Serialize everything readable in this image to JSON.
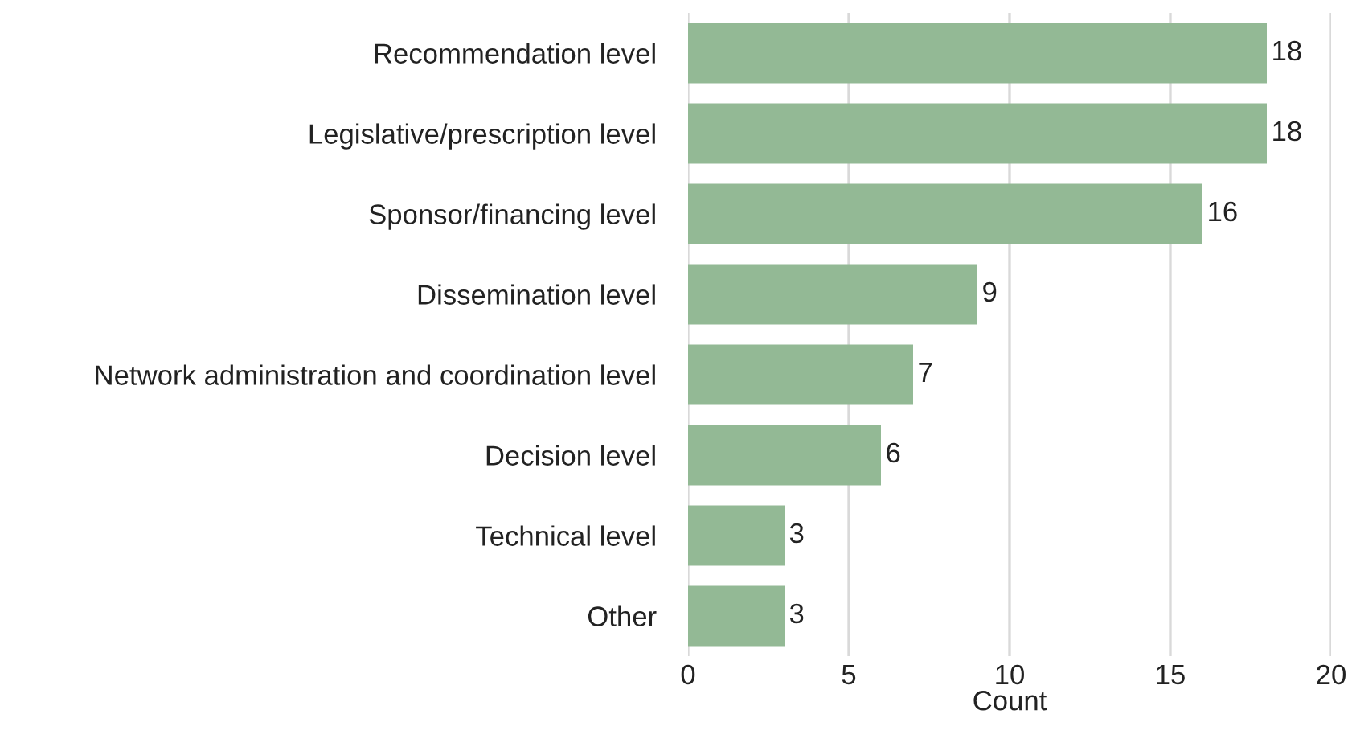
{
  "chart_data": {
    "type": "bar",
    "orientation": "horizontal",
    "xlabel": "Count",
    "categories": [
      "Recommendation level",
      "Legislative/prescription level",
      "Sponsor/financing level",
      "Dissemination level",
      "Network administration and coordination level",
      "Decision level",
      "Technical level",
      "Other"
    ],
    "values": [
      18,
      18,
      16,
      9,
      7,
      6,
      3,
      3
    ],
    "color": "#93b995",
    "xlim": [
      0,
      20
    ],
    "xticks": [
      0,
      5,
      10,
      15,
      20
    ],
    "grid": "x",
    "data_labels": true
  }
}
